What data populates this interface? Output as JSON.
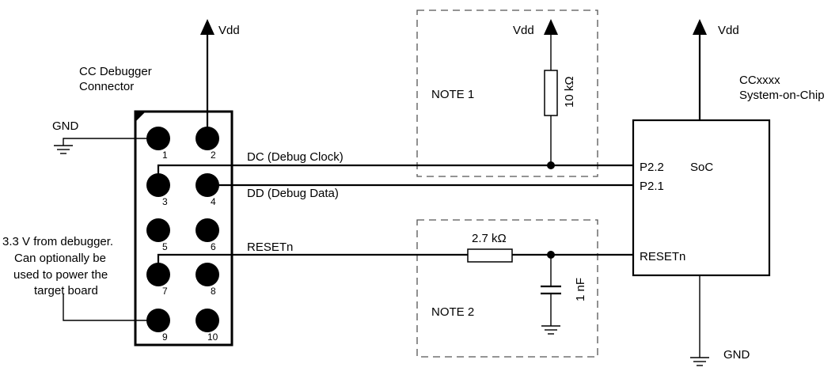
{
  "connector": {
    "title_line1": "CC Debugger",
    "title_line2": "Connector",
    "pins": [
      "1",
      "2",
      "3",
      "4",
      "5",
      "6",
      "7",
      "8",
      "9",
      "10"
    ]
  },
  "power": {
    "vdd": "Vdd",
    "gnd": "GND"
  },
  "signals": {
    "dc": "DC (Debug Clock)",
    "dd": "DD (Debug Data)",
    "reset": "RESETn"
  },
  "soc": {
    "title_line1": "CCxxxx",
    "title_line2": "System-on-Chip",
    "label": "SoC",
    "pin_p22": "P2.2",
    "pin_p21": "P2.1",
    "pin_reset": "RESETn"
  },
  "notes": {
    "note1": "NOTE 1",
    "note2": "NOTE 2"
  },
  "components": {
    "pullup": "10 kΩ",
    "series_resistor": "2.7 kΩ",
    "capacitor": "1 nF"
  },
  "annotation": {
    "line1": "3.3 V from debugger.",
    "line2": "Can optionally be",
    "line3": "used to power the",
    "line4": "target board"
  }
}
